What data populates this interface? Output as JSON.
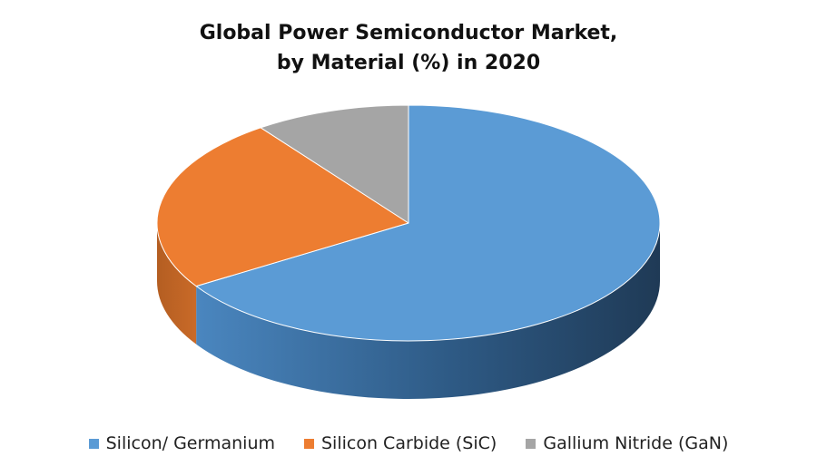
{
  "chart_data": {
    "type": "pie",
    "title": "Global Power Semiconductor Market, by Material (%) in 2020",
    "title_lines": [
      "Global Power Semiconductor Market,",
      "by Material (%) in 2020"
    ],
    "style": "3d",
    "legend_position": "bottom",
    "series": [
      {
        "name": "Silicon/ Germanium",
        "value": 66,
        "color": "#5B9BD5",
        "side_color": "#2F5F8C"
      },
      {
        "name": "Silicon Carbide (SiC)",
        "value": 24,
        "color": "#ED7D31",
        "side_color": "#A9561E"
      },
      {
        "name": "Gallium Nitride (GaN)",
        "value": 10,
        "color": "#A5A5A5",
        "side_color": "#6E6E6E"
      }
    ]
  }
}
